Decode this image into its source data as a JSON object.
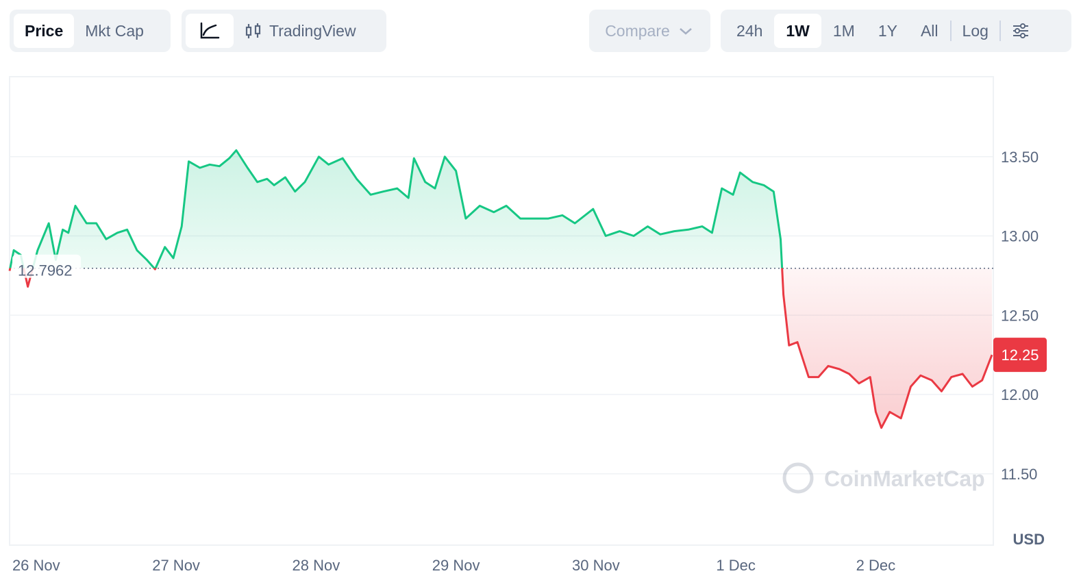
{
  "toolbar": {
    "price": "Price",
    "mkt_cap": "Mkt Cap",
    "trading_view": "TradingView",
    "compare": "Compare",
    "ranges": [
      "24h",
      "1W",
      "1M",
      "1Y",
      "All"
    ],
    "active_range": "1W",
    "log": "Log"
  },
  "chart_data": {
    "type": "line",
    "watermark": "CoinMarketCap",
    "y_unit": "USD",
    "x": [
      -0.19,
      -0.16,
      -0.11,
      -0.06,
      0.01,
      0.09,
      0.14,
      0.19,
      0.23,
      0.28,
      0.36,
      0.43,
      0.5,
      0.58,
      0.65,
      0.72,
      0.79,
      0.85,
      0.92,
      0.98,
      1.04,
      1.09,
      1.17,
      1.24,
      1.31,
      1.38,
      1.43,
      1.51,
      1.58,
      1.65,
      1.7,
      1.78,
      1.85,
      1.92,
      2.02,
      2.09,
      2.19,
      2.29,
      2.39,
      2.48,
      2.58,
      2.66,
      2.7,
      2.78,
      2.85,
      2.92,
      3.0,
      3.07,
      3.17,
      3.27,
      3.36,
      3.46,
      3.56,
      3.66,
      3.76,
      3.85,
      3.98,
      4.07,
      4.17,
      4.27,
      4.37,
      4.46,
      4.56,
      4.66,
      4.76,
      4.83,
      4.9,
      4.98,
      5.03,
      5.12,
      5.2,
      5.27,
      5.32,
      5.34,
      5.38,
      5.44,
      5.52,
      5.59,
      5.66,
      5.74,
      5.81,
      5.88,
      5.96,
      6.0,
      6.04,
      6.1,
      6.18,
      6.25,
      6.32,
      6.4,
      6.47,
      6.54,
      6.62,
      6.69,
      6.76,
      6.83
    ],
    "values": [
      12.78,
      12.91,
      12.88,
      12.68,
      12.91,
      13.08,
      12.85,
      13.04,
      13.02,
      13.19,
      13.08,
      13.08,
      12.98,
      13.02,
      13.04,
      12.91,
      12.85,
      12.79,
      12.93,
      12.86,
      13.06,
      13.47,
      13.43,
      13.45,
      13.44,
      13.49,
      13.54,
      13.43,
      13.34,
      13.36,
      13.32,
      13.37,
      13.28,
      13.34,
      13.5,
      13.45,
      13.49,
      13.36,
      13.26,
      13.28,
      13.3,
      13.24,
      13.49,
      13.34,
      13.3,
      13.5,
      13.41,
      13.11,
      13.19,
      13.15,
      13.19,
      13.11,
      13.11,
      13.11,
      13.13,
      13.08,
      13.17,
      13.0,
      13.03,
      13.0,
      13.06,
      13.01,
      13.03,
      13.04,
      13.06,
      13.02,
      13.3,
      13.26,
      13.4,
      13.34,
      13.32,
      13.28,
      12.98,
      12.63,
      12.31,
      12.33,
      12.11,
      12.11,
      12.18,
      12.16,
      12.13,
      12.07,
      12.11,
      11.89,
      11.79,
      11.89,
      11.85,
      12.05,
      12.12,
      12.09,
      12.02,
      12.11,
      12.13,
      12.05,
      12.09,
      12.25
    ],
    "baseline": {
      "value": 12.7962,
      "label": "12.7962"
    },
    "last": {
      "value": 12.25,
      "label": "12.25"
    },
    "up_color": "#16c784",
    "down_color": "#ea3943",
    "xlim": [
      -0.19,
      6.84
    ],
    "xticks": [
      {
        "value": 0,
        "label": "26 Nov"
      },
      {
        "value": 1,
        "label": "27 Nov"
      },
      {
        "value": 2,
        "label": "28 Nov"
      },
      {
        "value": 3,
        "label": "29 Nov"
      },
      {
        "value": 4,
        "label": "30 Nov"
      },
      {
        "value": 5,
        "label": "1 Dec"
      },
      {
        "value": 6,
        "label": "2 Dec"
      }
    ],
    "ylim": [
      11.05,
      14.0
    ],
    "yticks": [
      {
        "value": 11.5,
        "label": "11.50"
      },
      {
        "value": 12,
        "label": "12.00"
      },
      {
        "value": 12.5,
        "label": "12.50"
      },
      {
        "value": 13,
        "label": "13.00"
      },
      {
        "value": 13.5,
        "label": "13.50"
      }
    ],
    "grid": true
  }
}
